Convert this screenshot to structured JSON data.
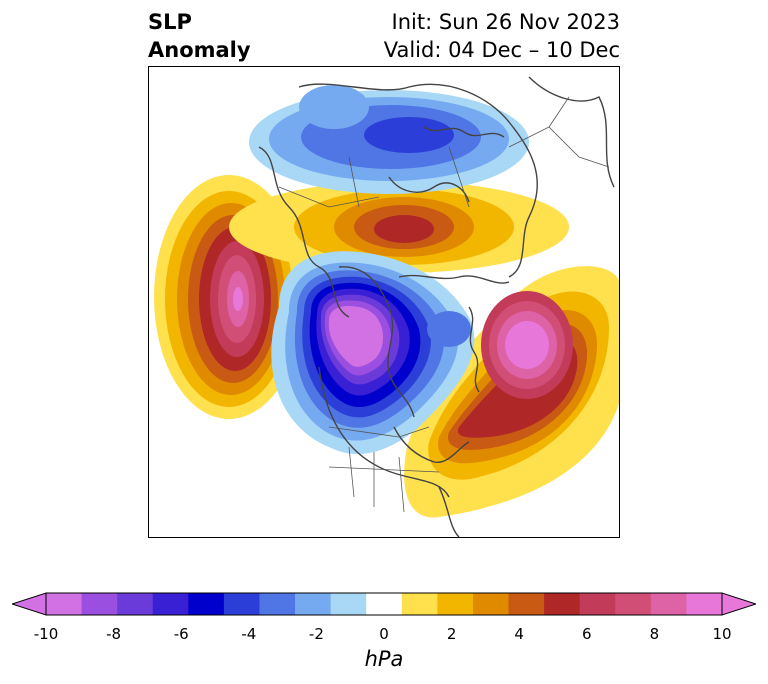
{
  "title": {
    "left_line1": "SLP",
    "left_line2": "Anomaly",
    "right_line1": "Init: Sun 26 Nov 2023",
    "right_line2": "Valid: 04 Dec – 10 Dec"
  },
  "colorbar": {
    "units": "hPa",
    "ticks": [
      "-10",
      "-8",
      "-6",
      "-4",
      "-2",
      "0",
      "2",
      "4",
      "6",
      "8",
      "10"
    ],
    "levels": [
      -10,
      -9,
      -8,
      -7,
      -6,
      -5,
      -4,
      -3,
      -2,
      -1,
      1,
      2,
      3,
      4,
      5,
      6,
      7,
      8,
      9,
      10
    ],
    "colors": [
      "#d171e4",
      "#9b4fe0",
      "#6a3bd9",
      "#3a20d4",
      "#0000cc",
      "#2b3fd8",
      "#4f76e4",
      "#76aaf0",
      "#a8d8f6",
      "#ffffff",
      "#ffe04d",
      "#f2b600",
      "#e08a00",
      "#c85a14",
      "#b02727",
      "#c23b58",
      "#d14f77",
      "#dd62a6",
      "#e777d8"
    ],
    "over_color": "#e777d8",
    "under_color": "#d171e4"
  },
  "map": {
    "region": "North Polar Stereographic",
    "features": [
      "Anomaly Low over Canada",
      "Anomaly High over the Pacific",
      "Anomaly High over the Atlantic",
      "Anomaly High over the Arctic",
      "Anomaly Low over Siberia"
    ]
  }
}
